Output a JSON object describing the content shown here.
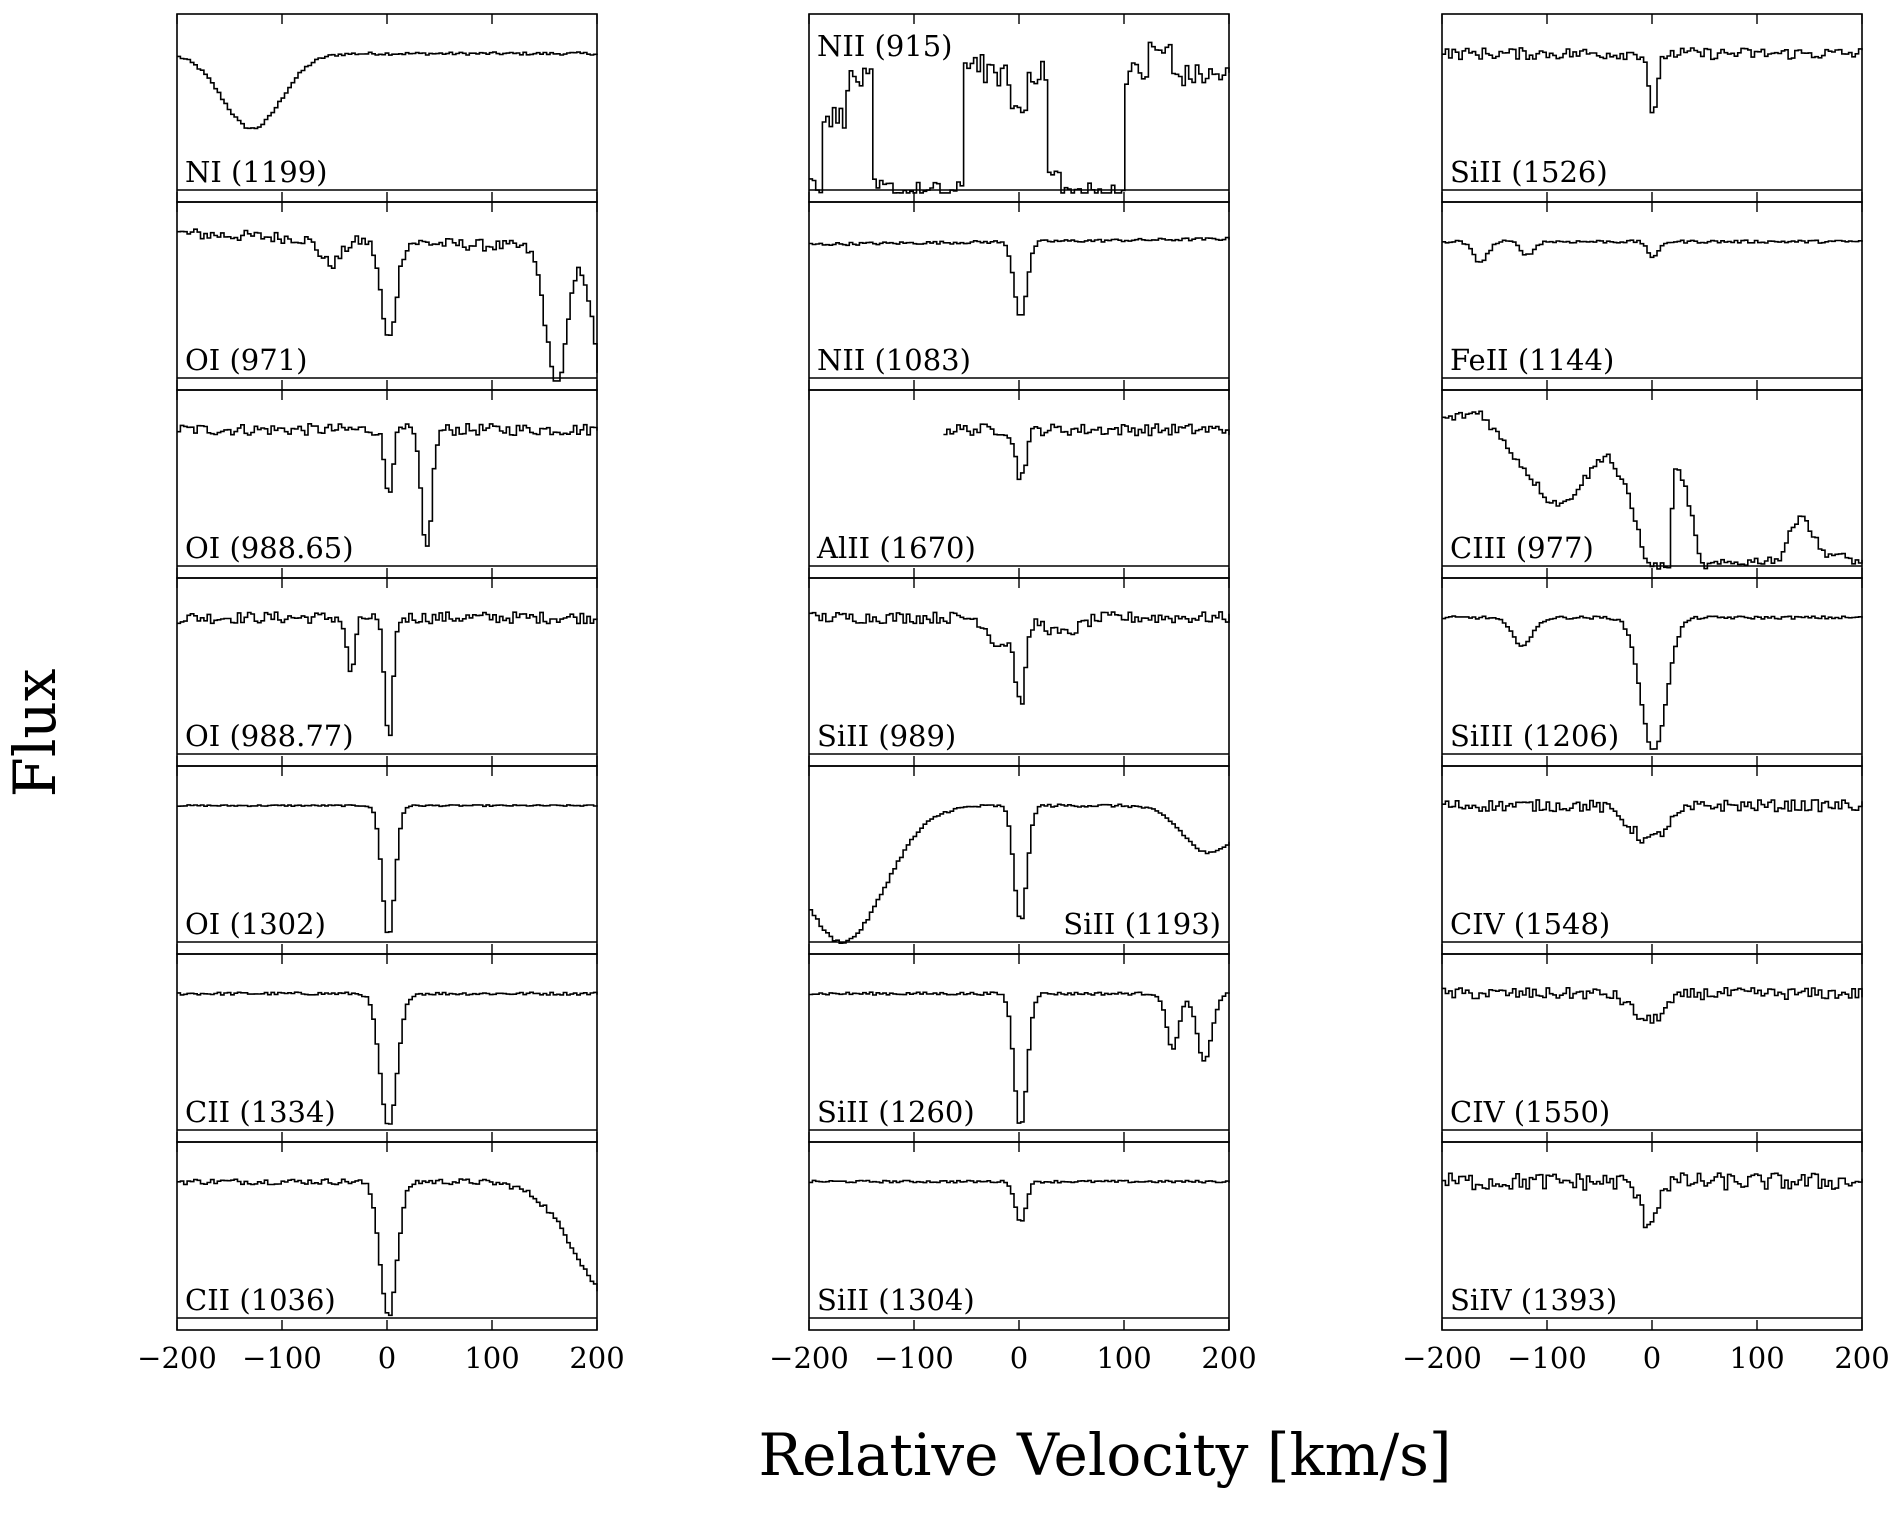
{
  "chart_data": {
    "type": "line",
    "step": true,
    "xlabel": "Relative Velocity [km/s]",
    "ylabel": "Flux",
    "xlim": [
      -200,
      200
    ],
    "ylim": [
      0,
      1.2
    ],
    "xticks": [
      -200,
      -100,
      0,
      100,
      200
    ],
    "xtick_labels": [
      "−200",
      "−100",
      "0",
      "100",
      "200"
    ],
    "columns": [
      {
        "panels": [
          {
            "label": "NI (1199)",
            "label_pos": "bottom-left",
            "features": [
              {
                "v": -130,
                "depth": 0.55,
                "w": 28
              }
            ],
            "noise": 0.01,
            "slope": 0.0
          },
          {
            "label": "OI (971)",
            "label_pos": "bottom-left",
            "features": [
              {
                "v": 0,
                "depth": 0.72,
                "w": 7
              },
              {
                "v": -55,
                "depth": 0.18,
                "w": 10
              },
              {
                "v": 160,
                "depth": 1.0,
                "w": 10
              },
              {
                "v": 205,
                "depth": 1.0,
                "w": 10
              }
            ],
            "noise": 0.04,
            "slope": -0.06
          },
          {
            "label": "OI (988.65)",
            "label_pos": "bottom-left",
            "features": [
              {
                "v": 0,
                "depth": 0.45,
                "w": 4
              },
              {
                "v": 36,
                "depth": 0.88,
                "w": 5
              }
            ],
            "noise": 0.04,
            "slope": 0.0
          },
          {
            "label": "OI (988.77)",
            "label_pos": "bottom-left",
            "features": [
              {
                "v": 0,
                "depth": 0.9,
                "w": 4
              },
              {
                "v": -36,
                "depth": 0.4,
                "w": 4
              }
            ],
            "noise": 0.04,
            "slope": 0.0
          },
          {
            "label": "OI (1302)",
            "label_pos": "bottom-left",
            "features": [
              {
                "v": 0,
                "depth": 0.96,
                "w": 6
              }
            ],
            "noise": 0.005,
            "slope": 0.0
          },
          {
            "label": "CII (1334)",
            "label_pos": "bottom-left",
            "features": [
              {
                "v": 0,
                "depth": 0.98,
                "w": 8
              }
            ],
            "noise": 0.01,
            "slope": 0.0
          },
          {
            "label": "CII (1036)",
            "label_pos": "bottom-left",
            "features": [
              {
                "v": 0,
                "depth": 0.98,
                "w": 8
              },
              {
                "v": 220,
                "depth": 0.9,
                "w": 40
              }
            ],
            "noise": 0.02,
            "slope": 0.0
          }
        ]
      },
      {
        "panels": [
          {
            "label": "NII (915)",
            "label_pos": "top-left",
            "features": [],
            "noise": 0.08,
            "slope": 0.0
          },
          {
            "label": "NII (1083)",
            "label_pos": "bottom-left",
            "features": [
              {
                "v": 0,
                "depth": 0.55,
                "w": 6
              }
            ],
            "noise": 0.01,
            "slope": 0.02
          },
          {
            "label": "AlII (1670)",
            "label_pos": "bottom-left",
            "features": [
              {
                "v": 0,
                "depth": 0.35,
                "w": 5
              }
            ],
            "noise": 0.04,
            "slope": 0.0
          },
          {
            "label": "SiII (989)",
            "label_pos": "bottom-left",
            "features": [
              {
                "v": 0,
                "depth": 0.6,
                "w": 5
              },
              {
                "v": -20,
                "depth": 0.2,
                "w": 10
              },
              {
                "v": 40,
                "depth": 0.12,
                "w": 15
              }
            ],
            "noise": 0.04,
            "slope": 0.0
          },
          {
            "label": "SiII (1193)",
            "label_pos": "bottom-right",
            "features": [
              {
                "v": 0,
                "depth": 0.85,
                "w": 6
              },
              {
                "v": -170,
                "depth": 1.0,
                "w": 40
              },
              {
                "v": 180,
                "depth": 0.35,
                "w": 25
              }
            ],
            "noise": 0.01,
            "slope": 0.0
          },
          {
            "label": "SiII (1260)",
            "label_pos": "bottom-left",
            "features": [
              {
                "v": 0,
                "depth": 0.98,
                "w": 6
              },
              {
                "v": 145,
                "depth": 0.4,
                "w": 6
              },
              {
                "v": 175,
                "depth": 0.5,
                "w": 7
              }
            ],
            "noise": 0.01,
            "slope": 0.0
          },
          {
            "label": "SiII (1304)",
            "label_pos": "bottom-left",
            "features": [
              {
                "v": 0,
                "depth": 0.3,
                "w": 5
              }
            ],
            "noise": 0.008,
            "slope": 0.0
          }
        ]
      },
      {
        "panels": [
          {
            "label": "SiII (1526)",
            "label_pos": "bottom-left",
            "features": [
              {
                "v": 0,
                "depth": 0.45,
                "w": 4
              }
            ],
            "noise": 0.04,
            "slope": 0.0
          },
          {
            "label": "FeII (1144)",
            "label_pos": "bottom-left",
            "features": [
              {
                "v": -165,
                "depth": 0.15,
                "w": 7
              },
              {
                "v": -120,
                "depth": 0.1,
                "w": 6
              },
              {
                "v": 0,
                "depth": 0.12,
                "w": 5
              }
            ],
            "noise": 0.01,
            "slope": 0.0
          },
          {
            "label": "CIII (977)",
            "label_pos": "bottom-left",
            "features": [],
            "noise": 0.03,
            "slope": 0.0
          },
          {
            "label": "SiIII (1206)",
            "label_pos": "bottom-left",
            "features": [
              {
                "v": 0,
                "depth": 0.98,
                "w": 12
              },
              {
                "v": -125,
                "depth": 0.2,
                "w": 10
              }
            ],
            "noise": 0.01,
            "slope": 0.0
          },
          {
            "label": "CIV (1548)",
            "label_pos": "bottom-left",
            "features": [
              {
                "v": -5,
                "depth": 0.25,
                "w": 18
              }
            ],
            "noise": 0.04,
            "slope": 0.0
          },
          {
            "label": "CIV (1550)",
            "label_pos": "bottom-left",
            "features": [
              {
                "v": -5,
                "depth": 0.2,
                "w": 15
              }
            ],
            "noise": 0.04,
            "slope": 0.0
          },
          {
            "label": "SiIV (1393)",
            "label_pos": "bottom-left",
            "features": [
              {
                "v": -5,
                "depth": 0.3,
                "w": 8
              }
            ],
            "noise": 0.06,
            "slope": 0.0
          }
        ]
      }
    ]
  }
}
